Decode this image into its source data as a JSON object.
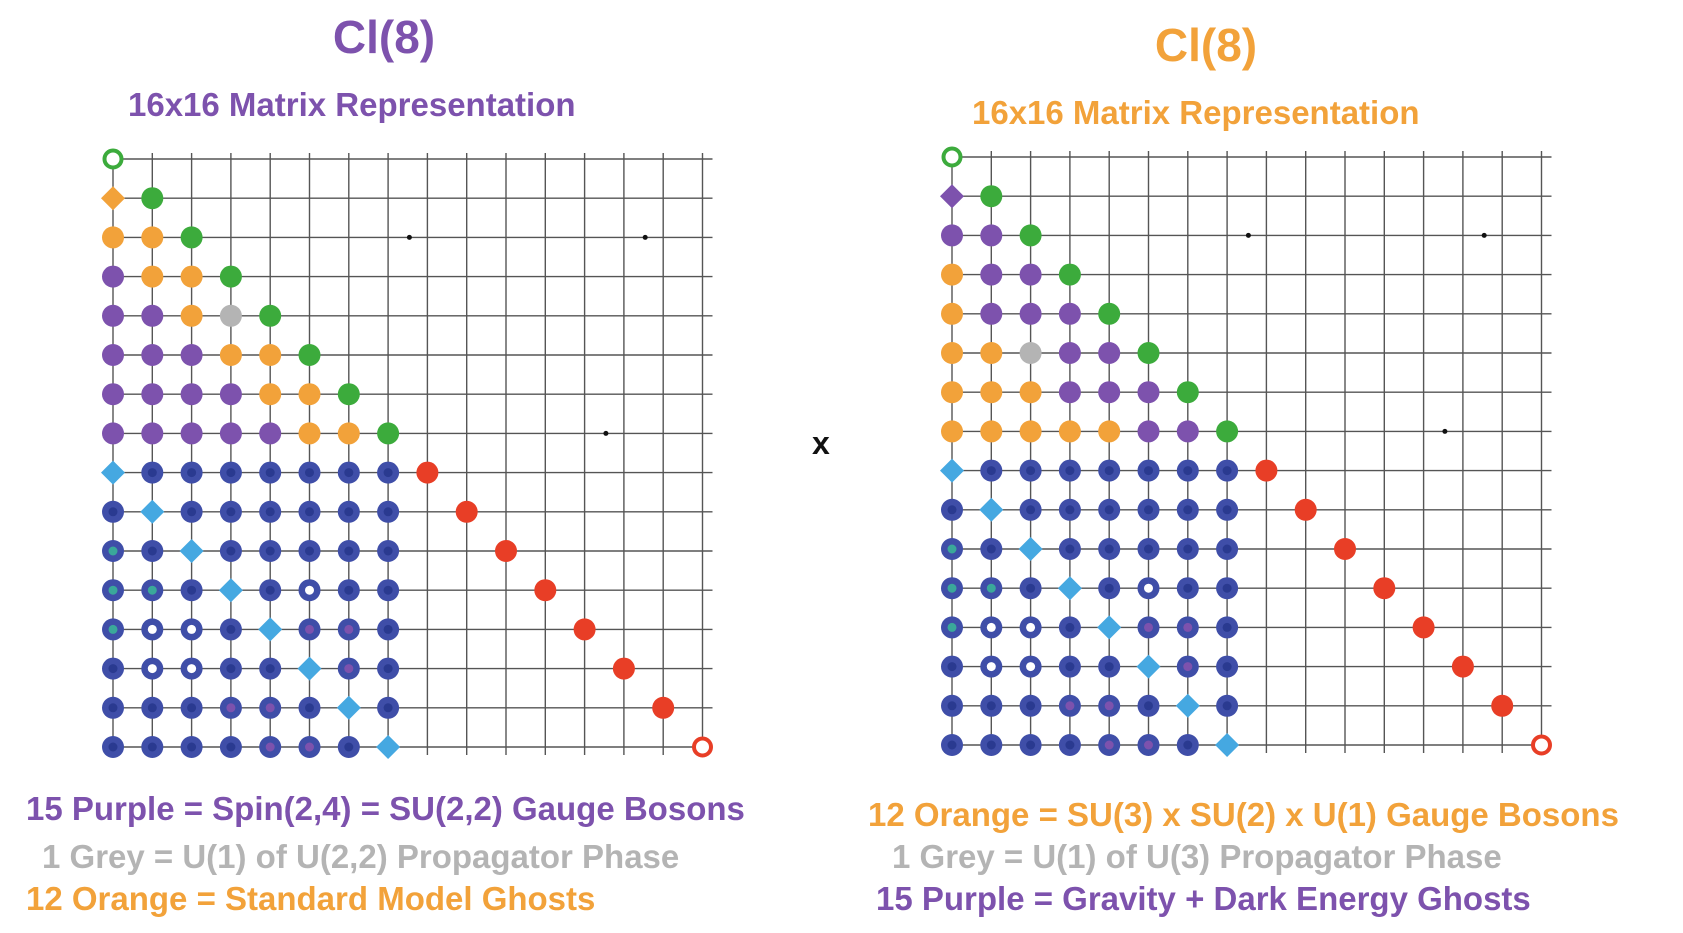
{
  "colors": {
    "purple": "#7d52ad",
    "orange": "#f2a23a",
    "grey": "#b4b4b4",
    "green": "#3cab3c",
    "red": "#e83e26",
    "blue": "#3f4ea8",
    "lightblue": "#45a8e1",
    "teal": "#3aa89a"
  },
  "left": {
    "title": "Cl(8)",
    "subtitle": "16x16 Matrix Representation",
    "legend": [
      {
        "text": "15 Purple = Spin(2,4) = SU(2,2) Gauge Bosons",
        "color": "purple"
      },
      {
        "text": "1 Grey = U(1) of U(2,2) Propagator Phase",
        "color": "grey"
      },
      {
        "text": "12 Orange = Standard Model Ghosts",
        "color": "orange"
      }
    ],
    "title_color": "purple",
    "lower_triangle": [
      "O",
      "OO",
      "POO",
      "PPOX",
      "PPPOO",
      "PPPPOO",
      "PPPPPOO"
    ]
  },
  "right": {
    "title": "Cl(8)",
    "subtitle": "16x16 Matrix Representation",
    "legend": [
      {
        "text": "12 Orange = SU(3) x SU(2) x U(1) Gauge Bosons",
        "color": "orange"
      },
      {
        "text": "1 Grey = U(1) of U(3) Propagator Phase",
        "color": "grey"
      },
      {
        "text": "15 Purple = Gravity + Dark Energy Ghosts",
        "color": "purple"
      }
    ],
    "title_color": "orange",
    "lower_triangle": [
      "P",
      "PP",
      "OPP",
      "OPPP",
      "OOXPP",
      "OOOPPP",
      "OOOOOPP"
    ]
  },
  "operator": "x"
}
